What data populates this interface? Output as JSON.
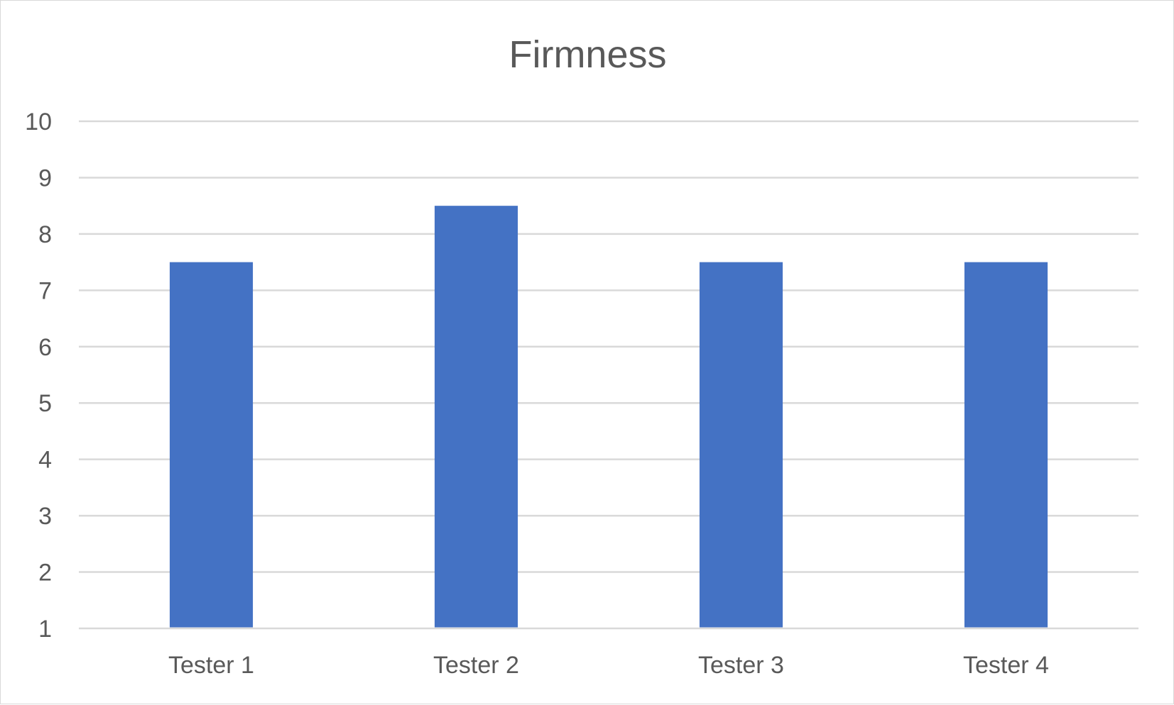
{
  "chart_data": {
    "type": "bar",
    "title": "Firmness",
    "xlabel": "",
    "ylabel": "",
    "categories": [
      "Tester 1",
      "Tester 2",
      "Tester 3",
      "Tester 4"
    ],
    "values": [
      7.5,
      8.5,
      7.5,
      7.5
    ],
    "ylim": [
      1,
      10
    ],
    "yticks": [
      "1",
      "2",
      "3",
      "4",
      "5",
      "6",
      "7",
      "8",
      "9",
      "10"
    ],
    "grid": true,
    "legend": "none",
    "bar_color": "#4472C4",
    "grid_color": "#D9D9D9",
    "text_color": "#595959"
  }
}
